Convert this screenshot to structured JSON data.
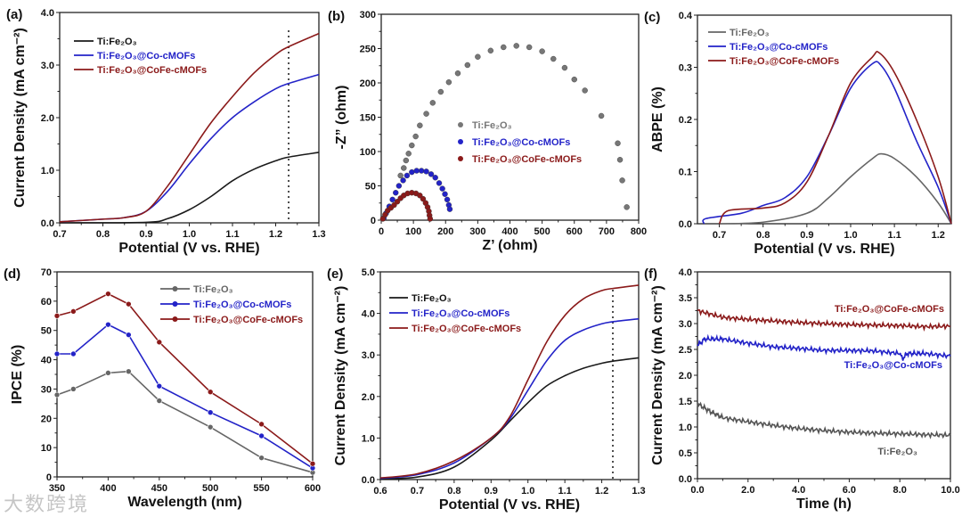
{
  "watermark": "大数跨境",
  "colors": {
    "black": "#1a1a1a",
    "gray": "#666666",
    "blue": "#2323c8",
    "red": "#8b1a1a"
  },
  "chart_data": [
    {
      "id": "a",
      "panel_label": "(a)",
      "type": "line",
      "xlabel": "Potential (V vs. RHE)",
      "ylabel": "Current Density (mA cm⁻²)",
      "xlim": [
        0.7,
        1.3
      ],
      "ylim": [
        0,
        4
      ],
      "xticks": [
        "0.7",
        "0.8",
        "0.9",
        "1.0",
        "1.1",
        "1.2",
        "1.3"
      ],
      "yticks": [
        "0.0",
        "1.0",
        "2.0",
        "3.0",
        "4.0"
      ],
      "vline": 1.23,
      "series": [
        {
          "name": "Ti:Fe₂O₃",
          "color": "#1a1a1a",
          "x": [
            0.7,
            0.9,
            0.95,
            1.0,
            1.05,
            1.1,
            1.15,
            1.2,
            1.23,
            1.3
          ],
          "y": [
            0,
            0.01,
            0.08,
            0.25,
            0.5,
            0.8,
            1.02,
            1.18,
            1.25,
            1.34
          ]
        },
        {
          "name": "Ti:Fe₂O₃@Co-cMOFs",
          "color": "#2323c8",
          "x": [
            0.7,
            0.8,
            0.85,
            0.9,
            0.95,
            1.0,
            1.05,
            1.1,
            1.15,
            1.2,
            1.23,
            1.3
          ],
          "y": [
            0.02,
            0.07,
            0.1,
            0.22,
            0.6,
            1.12,
            1.6,
            2.0,
            2.3,
            2.55,
            2.65,
            2.82
          ]
        },
        {
          "name": "Ti:Fe₂O₃@CoFe-cMOFs",
          "color": "#8b1a1a",
          "x": [
            0.7,
            0.8,
            0.85,
            0.9,
            0.95,
            1.0,
            1.05,
            1.1,
            1.15,
            1.2,
            1.23,
            1.3
          ],
          "y": [
            0.02,
            0.07,
            0.1,
            0.22,
            0.7,
            1.3,
            1.9,
            2.4,
            2.85,
            3.2,
            3.35,
            3.6
          ]
        }
      ]
    },
    {
      "id": "b",
      "panel_label": "(b)",
      "type": "scatter",
      "xlabel": "Z’ (ohm)",
      "ylabel": "-Z” (ohm)",
      "xlim": [
        0,
        800
      ],
      "ylim": [
        0,
        300
      ],
      "xticks": [
        "0",
        "100",
        "200",
        "300",
        "400",
        "500",
        "600",
        "700",
        "800"
      ],
      "yticks": [
        "0",
        "50",
        "100",
        "150",
        "200",
        "250",
        "300"
      ],
      "series": [
        {
          "name": "Ti:Fe₂O₃",
          "color": "#777777",
          "x": [
            60,
            70,
            77,
            85,
            95,
            107,
            120,
            140,
            160,
            185,
            210,
            238,
            268,
            300,
            340,
            380,
            420,
            460,
            500,
            535,
            570,
            600,
            633,
            684,
            735,
            742,
            749,
            763
          ],
          "y": [
            65,
            76,
            87,
            97,
            109,
            122,
            138,
            155,
            171,
            187,
            201,
            214,
            226,
            238,
            247,
            252,
            254,
            252,
            246,
            235,
            222,
            205,
            189,
            152,
            112,
            88,
            58,
            19
          ]
        },
        {
          "name": "Ti:Fe₂O₃@Co-cMOFs",
          "color": "#2323c8",
          "x": [
            8,
            15,
            25,
            35,
            45,
            55,
            68,
            80,
            95,
            110,
            125,
            140,
            155,
            168,
            180,
            190,
            198,
            205,
            210,
            213
          ],
          "y": [
            3,
            10,
            20,
            30,
            40,
            50,
            58,
            65,
            70,
            72,
            72,
            71,
            67,
            62,
            54,
            46,
            38,
            30,
            22,
            16
          ]
        },
        {
          "name": "Ti:Fe₂O₃@CoFe-cMOFs",
          "color": "#8b1a1a",
          "x": [
            5,
            12,
            20,
            30,
            40,
            50,
            60,
            70,
            82,
            95,
            108,
            120,
            130,
            138,
            144,
            148,
            150,
            152
          ],
          "y": [
            2,
            8,
            14,
            18,
            22,
            27,
            32,
            36,
            39,
            40,
            39,
            36,
            31,
            25,
            19,
            13,
            7,
            2
          ]
        }
      ]
    },
    {
      "id": "c",
      "panel_label": "(c)",
      "type": "line",
      "xlabel": "Potential (V vs. RHE)",
      "ylabel": "ABPE (%)",
      "xlim": [
        0.65,
        1.23
      ],
      "ylim": [
        0,
        0.4
      ],
      "xticks": [
        "0.7",
        "0.8",
        "0.9",
        "1.0",
        "1.1",
        "1.2"
      ],
      "yticks": [
        "0.0",
        "0.1",
        "0.2",
        "0.3",
        "0.4"
      ],
      "series": [
        {
          "name": "Ti:Fe₂O₃",
          "color": "#666666",
          "x": [
            0.7,
            0.8,
            0.9,
            0.95,
            1.0,
            1.05,
            1.07,
            1.1,
            1.15,
            1.2,
            1.23
          ],
          "y": [
            0,
            0.003,
            0.02,
            0.05,
            0.09,
            0.125,
            0.134,
            0.125,
            0.09,
            0.04,
            0
          ]
        },
        {
          "name": "Ti:Fe₂O₃@Co-cMOFs",
          "color": "#2323c8",
          "x": [
            0.665,
            0.67,
            0.75,
            0.8,
            0.85,
            0.9,
            0.95,
            1.0,
            1.05,
            1.07,
            1.1,
            1.15,
            1.2,
            1.23
          ],
          "y": [
            0,
            0.01,
            0.02,
            0.035,
            0.05,
            0.09,
            0.17,
            0.26,
            0.307,
            0.303,
            0.26,
            0.16,
            0.07,
            0
          ]
        },
        {
          "name": "Ti:Fe₂O₃@CoFe-cMOFs",
          "color": "#8b1a1a",
          "x": [
            0.7,
            0.72,
            0.8,
            0.85,
            0.9,
            0.95,
            1.0,
            1.05,
            1.065,
            1.1,
            1.15,
            1.2,
            1.23
          ],
          "y": [
            0,
            0.025,
            0.03,
            0.04,
            0.08,
            0.17,
            0.27,
            0.32,
            0.328,
            0.29,
            0.2,
            0.09,
            0
          ]
        }
      ]
    },
    {
      "id": "d",
      "panel_label": "(d)",
      "type": "line",
      "xlabel": "Wavelength (nm)",
      "ylabel": "IPCE (%)",
      "xlim": [
        350,
        600
      ],
      "ylim": [
        0,
        70
      ],
      "xticks": [
        "350",
        "400",
        "450",
        "500",
        "550",
        "600"
      ],
      "yticks": [
        "0",
        "10",
        "20",
        "30",
        "40",
        "50",
        "60",
        "70"
      ],
      "markers": true,
      "series": [
        {
          "name": "Ti:Fe₂O₃",
          "color": "#666666",
          "x": [
            350,
            366,
            400,
            420,
            450,
            500,
            550,
            600
          ],
          "y": [
            28,
            30,
            35.5,
            36,
            26,
            17,
            6.5,
            1.5
          ]
        },
        {
          "name": "Ti:Fe₂O₃@Co-cMOFs",
          "color": "#2323c8",
          "x": [
            350,
            366,
            400,
            420,
            450,
            500,
            550,
            600
          ],
          "y": [
            42,
            42,
            52,
            48.5,
            31,
            22,
            14,
            3
          ]
        },
        {
          "name": "Ti:Fe₂O₃@CoFe-cMOFs",
          "color": "#8b1a1a",
          "x": [
            350,
            366,
            400,
            420,
            450,
            500,
            550,
            600
          ],
          "y": [
            55,
            56.5,
            62.5,
            59,
            46,
            29,
            18,
            4.5
          ]
        }
      ]
    },
    {
      "id": "e",
      "panel_label": "(e)",
      "type": "line",
      "xlabel": "Potential (V vs. RHE)",
      "ylabel": "Current Density (mA cm⁻²)",
      "xlim": [
        0.6,
        1.3
      ],
      "ylim": [
        0,
        5
      ],
      "xticks": [
        "0.6",
        "0.7",
        "0.8",
        "0.9",
        "1.0",
        "1.1",
        "1.2",
        "1.3"
      ],
      "yticks": [
        "0.0",
        "1.0",
        "2.0",
        "3.0",
        "4.0",
        "5.0"
      ],
      "vline": 1.23,
      "series": [
        {
          "name": "Ti:Fe₂O₃",
          "color": "#1a1a1a",
          "x": [
            0.6,
            0.7,
            0.8,
            0.9,
            0.95,
            1.0,
            1.05,
            1.1,
            1.15,
            1.2,
            1.23,
            1.3
          ],
          "y": [
            0.02,
            0.06,
            0.3,
            0.95,
            1.4,
            1.85,
            2.25,
            2.5,
            2.68,
            2.8,
            2.85,
            2.93
          ]
        },
        {
          "name": "Ti:Fe₂O₃@Co-cMOFs",
          "color": "#2323c8",
          "x": [
            0.6,
            0.7,
            0.8,
            0.9,
            0.95,
            1.0,
            1.05,
            1.1,
            1.15,
            1.2,
            1.23,
            1.3
          ],
          "y": [
            0.03,
            0.12,
            0.4,
            1.0,
            1.45,
            2.15,
            2.85,
            3.35,
            3.6,
            3.75,
            3.8,
            3.87
          ]
        },
        {
          "name": "Ti:Fe₂O₃@CoFe-cMOFs",
          "color": "#8b1a1a",
          "x": [
            0.6,
            0.7,
            0.8,
            0.9,
            0.95,
            1.0,
            1.05,
            1.1,
            1.15,
            1.2,
            1.23,
            1.3
          ],
          "y": [
            0.04,
            0.14,
            0.45,
            1.0,
            1.5,
            2.4,
            3.3,
            3.95,
            4.35,
            4.55,
            4.6,
            4.68
          ]
        }
      ]
    },
    {
      "id": "f",
      "panel_label": "(f)",
      "type": "line",
      "xlabel": "Time (h)",
      "ylabel": "Current Density (mA cm⁻²)",
      "xlim": [
        0,
        10
      ],
      "ylim": [
        0,
        4
      ],
      "xticks": [
        "0.0",
        "2.0",
        "4.0",
        "6.0",
        "8.0",
        "10.0"
      ],
      "yticks": [
        "0.0",
        "0.5",
        "1.0",
        "1.5",
        "2.0",
        "2.5",
        "3.0",
        "3.5",
        "4.0"
      ],
      "noisy": true,
      "series": [
        {
          "name": "Ti:Fe₂O₃@CoFe-cMOFs",
          "color": "#8b1a1a",
          "x": [
            0,
            1,
            2,
            3,
            4,
            5,
            6,
            7,
            8,
            9,
            10
          ],
          "y": [
            3.25,
            3.12,
            3.08,
            3.05,
            3.02,
            3.0,
            2.98,
            2.97,
            2.96,
            2.94,
            2.95
          ]
        },
        {
          "name": "Ti:Fe₂O₃@Co-cMOFs",
          "color": "#2323c8",
          "x": [
            0,
            0.3,
            1,
            2,
            3,
            4,
            5,
            6,
            7,
            8,
            8.1,
            8.3,
            9,
            10
          ],
          "y": [
            2.58,
            2.7,
            2.7,
            2.62,
            2.55,
            2.52,
            2.48,
            2.48,
            2.47,
            2.42,
            2.32,
            2.42,
            2.42,
            2.37
          ]
        },
        {
          "name": "Ti:Fe₂O₃",
          "color": "#555555",
          "x": [
            0,
            0.5,
            1,
            2,
            3,
            4,
            5,
            6,
            7,
            8,
            9,
            10
          ],
          "y": [
            1.45,
            1.3,
            1.18,
            1.1,
            1.03,
            0.97,
            0.93,
            0.9,
            0.88,
            0.87,
            0.85,
            0.84
          ]
        }
      ]
    }
  ]
}
